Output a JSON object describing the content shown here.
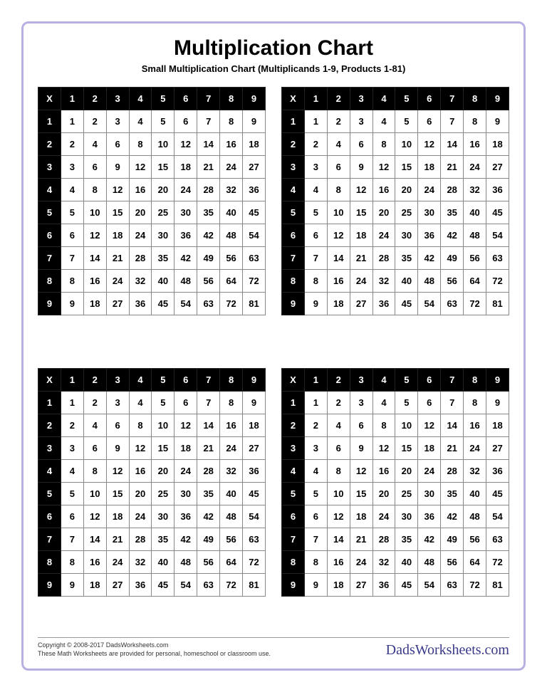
{
  "page": {
    "title": "Multiplication Chart",
    "subtitle": "Small Multiplication Chart (Multiplicands 1-9, Products 1-81)",
    "border_color": "#b8b0e0",
    "background_color": "#ffffff"
  },
  "table": {
    "type": "multiplication-table",
    "corner_label": "X",
    "col_headers": [
      1,
      2,
      3,
      4,
      5,
      6,
      7,
      8,
      9
    ],
    "row_headers": [
      1,
      2,
      3,
      4,
      5,
      6,
      7,
      8,
      9
    ],
    "rows": [
      [
        1,
        2,
        3,
        4,
        5,
        6,
        7,
        8,
        9
      ],
      [
        2,
        4,
        6,
        8,
        10,
        12,
        14,
        16,
        18
      ],
      [
        3,
        6,
        9,
        12,
        15,
        18,
        21,
        24,
        27
      ],
      [
        4,
        8,
        12,
        16,
        20,
        24,
        28,
        32,
        36
      ],
      [
        5,
        10,
        15,
        20,
        25,
        30,
        35,
        40,
        45
      ],
      [
        6,
        12,
        18,
        24,
        30,
        36,
        42,
        48,
        54
      ],
      [
        7,
        14,
        21,
        28,
        35,
        42,
        49,
        56,
        63
      ],
      [
        8,
        16,
        24,
        32,
        40,
        48,
        56,
        64,
        72
      ],
      [
        9,
        18,
        27,
        36,
        45,
        54,
        63,
        72,
        81
      ]
    ],
    "header_bg": "#000000",
    "header_fg": "#ffffff",
    "cell_bg": "#ffffff",
    "cell_fg": "#000000",
    "border_color": "#888888",
    "font_weight": "bold",
    "font_size_pt": 10,
    "copies": 4,
    "layout": "2x2"
  },
  "footer": {
    "copyright": "Copyright © 2008-2017 DadsWorksheets.com",
    "note": "These Math Worksheets are provided for personal, homeschool or classroom use.",
    "brand": "DadsWorksheets.com"
  }
}
